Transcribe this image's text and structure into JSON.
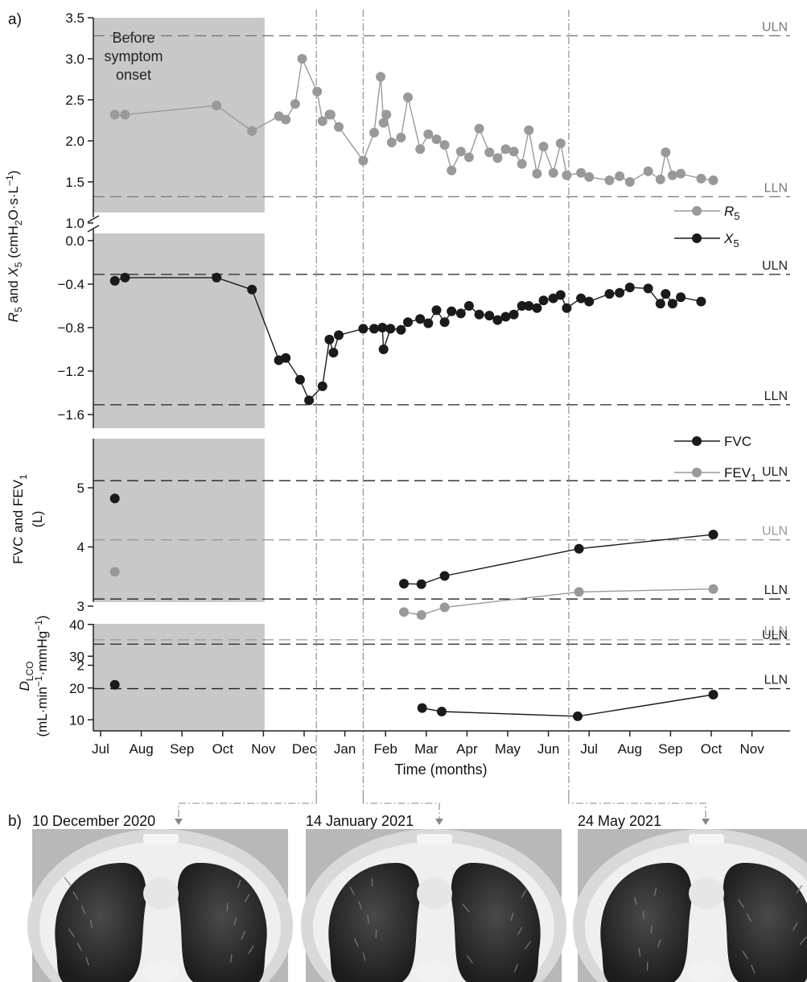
{
  "panel_labels": {
    "a": "a)",
    "b": "b)"
  },
  "shade_label": [
    "Before",
    "symptom",
    "onset"
  ],
  "x_axis": {
    "label": "Time (months)",
    "ticks": [
      "Jul",
      "Aug",
      "Sep",
      "Oct",
      "Nov",
      "Dec",
      "Jan",
      "Feb",
      "Mar",
      "Apr",
      "May",
      "Jun",
      "Jul",
      "Aug",
      "Sep",
      "Oct",
      "Nov"
    ]
  },
  "ref_labels": {
    "uln": "ULN",
    "lln": "LLN"
  },
  "ct_scans": [
    {
      "date": "10 December 2020"
    },
    {
      "date": "14 January 2021"
    },
    {
      "date": "24 May 2021"
    }
  ],
  "colors": {
    "dark_series": "#1a1a1a",
    "light_series": "#999999",
    "shade": "#c8c8c8"
  },
  "chart_data": [
    {
      "type": "line",
      "panel": "R5 and X5",
      "ylabel_parts": [
        "R",
        "5",
        " and X",
        "5",
        " (cmH",
        "2",
        "O·s·L",
        "−1",
        ")"
      ],
      "subpanels": [
        {
          "name": "R5",
          "ylim": [
            1.0,
            3.5
          ],
          "ticks": [
            "1.0",
            "1.5",
            "2.0",
            "2.5",
            "3.0",
            "3.5"
          ],
          "uln": 3.28,
          "lln": 1.32,
          "legend": {
            "label": "R",
            "sub": "5"
          },
          "series": {
            "name": "R5",
            "x": [
              0.35,
              0.6,
              2.85,
              3.72,
              4.38,
              4.55,
              4.78,
              4.95,
              5.32,
              5.45,
              5.62,
              5.65,
              5.85,
              6.45,
              6.72,
              6.88,
              6.95,
              7.02,
              7.15,
              7.38,
              7.55,
              7.85,
              8.05,
              8.25,
              8.45,
              8.62,
              8.85,
              9.05,
              9.3,
              9.55,
              9.75,
              9.95,
              10.15,
              10.35,
              10.52,
              10.72,
              10.88,
              11.12,
              11.3,
              11.45,
              11.8,
              12.0,
              12.5,
              12.75,
              13.0,
              13.45,
              13.75,
              13.88,
              14.05,
              14.25,
              14.75,
              15.05
            ],
            "y": [
              2.32,
              2.32,
              2.43,
              2.12,
              2.3,
              2.26,
              2.45,
              3.0,
              2.6,
              2.24,
              2.32,
              2.32,
              2.17,
              1.76,
              2.1,
              2.78,
              2.22,
              2.32,
              1.98,
              2.04,
              2.53,
              1.9,
              2.08,
              2.02,
              1.95,
              1.64,
              1.87,
              1.8,
              2.15,
              1.86,
              1.79,
              1.9,
              1.87,
              1.72,
              2.13,
              1.6,
              1.93,
              1.61,
              1.97,
              1.58,
              1.61,
              1.56,
              1.52,
              1.57,
              1.5,
              1.63,
              1.53,
              1.86,
              1.58,
              1.6,
              1.54,
              1.52
            ]
          }
        },
        {
          "name": "X5",
          "ylim": [
            -1.7,
            0.0
          ],
          "ticks": [
            "0.0",
            "−0.4",
            "−0.8",
            "−1.2",
            "−1.6"
          ],
          "tick_values": [
            0.0,
            -0.4,
            -0.8,
            -1.2,
            -1.6
          ],
          "uln": -0.31,
          "lln": -1.51,
          "legend": {
            "label": "X",
            "sub": "5"
          },
          "series": {
            "name": "X5",
            "x": [
              0.35,
              0.6,
              2.85,
              3.72,
              4.38,
              4.55,
              4.9,
              5.12,
              5.45,
              5.62,
              5.72,
              5.85,
              6.45,
              6.72,
              6.92,
              6.95,
              7.12,
              7.38,
              7.55,
              7.85,
              8.05,
              8.25,
              8.45,
              8.62,
              8.85,
              9.05,
              9.3,
              9.55,
              9.75,
              9.95,
              10.15,
              10.35,
              10.52,
              10.72,
              10.88,
              11.12,
              11.3,
              11.45,
              11.8,
              12.0,
              12.5,
              12.75,
              13.0,
              13.45,
              13.75,
              13.88,
              14.05,
              14.25,
              14.75
            ],
            "y": [
              -0.37,
              -0.34,
              -0.34,
              -0.45,
              -1.1,
              -1.08,
              -1.28,
              -1.47,
              -1.34,
              -0.91,
              -1.03,
              -0.87,
              -0.81,
              -0.81,
              -0.8,
              -1.0,
              -0.81,
              -0.82,
              -0.75,
              -0.72,
              -0.76,
              -0.64,
              -0.75,
              -0.65,
              -0.67,
              -0.6,
              -0.68,
              -0.69,
              -0.73,
              -0.7,
              -0.68,
              -0.6,
              -0.6,
              -0.62,
              -0.55,
              -0.53,
              -0.5,
              -0.62,
              -0.53,
              -0.56,
              -0.49,
              -0.48,
              -0.43,
              -0.44,
              -0.58,
              -0.49,
              -0.58,
              -0.52,
              -0.56
            ]
          }
        }
      ]
    },
    {
      "type": "line",
      "panel": "FVC and FEV1",
      "ylabel_parts": [
        "FVC and FEV",
        "1",
        "(L)"
      ],
      "ylim": [
        2,
        5.4
      ],
      "ticks": [
        "2",
        "3",
        "4",
        "5"
      ],
      "tick_values": [
        2,
        3,
        4,
        5
      ],
      "ref_lines": [
        {
          "series": "FVC",
          "uln": 5.12,
          "lln": 3.12
        },
        {
          "series": "FEV1",
          "uln": 4.12,
          "lln": 2.43
        }
      ],
      "series": [
        {
          "name": "FVC",
          "legend": {
            "label": "FVC",
            "sub": ""
          },
          "x": [
            0.35,
            7.45,
            7.88,
            8.45,
            11.75,
            15.05
          ],
          "y": [
            4.82,
            3.38,
            3.37,
            3.51,
            3.97,
            4.21
          ],
          "connect_from": 1
        },
        {
          "name": "FEV1",
          "legend": {
            "label": "FEV",
            "sub": "1"
          },
          "x": [
            0.35,
            7.45,
            7.88,
            8.45,
            11.75,
            15.05
          ],
          "y": [
            3.58,
            2.9,
            2.85,
            2.98,
            3.24,
            3.29
          ],
          "connect_from": 1
        }
      ]
    },
    {
      "type": "line",
      "panel": "DLCO",
      "ylabel_parts": [
        "D",
        "LCO",
        "(mL·min",
        "−1",
        "·mmHg",
        "−1",
        ")"
      ],
      "ylim": [
        5,
        40
      ],
      "ticks": [
        "10",
        "20",
        "30",
        "40"
      ],
      "tick_values": [
        10,
        20,
        30,
        40
      ],
      "uln": 33.8,
      "lln": 19.8,
      "series": [
        {
          "name": "DLCO",
          "x": [
            0.35,
            7.9,
            8.38,
            11.72,
            15.05
          ],
          "y": [
            21,
            13.7,
            12.6,
            11.1,
            17.9
          ],
          "connect_from": 1
        }
      ]
    }
  ]
}
